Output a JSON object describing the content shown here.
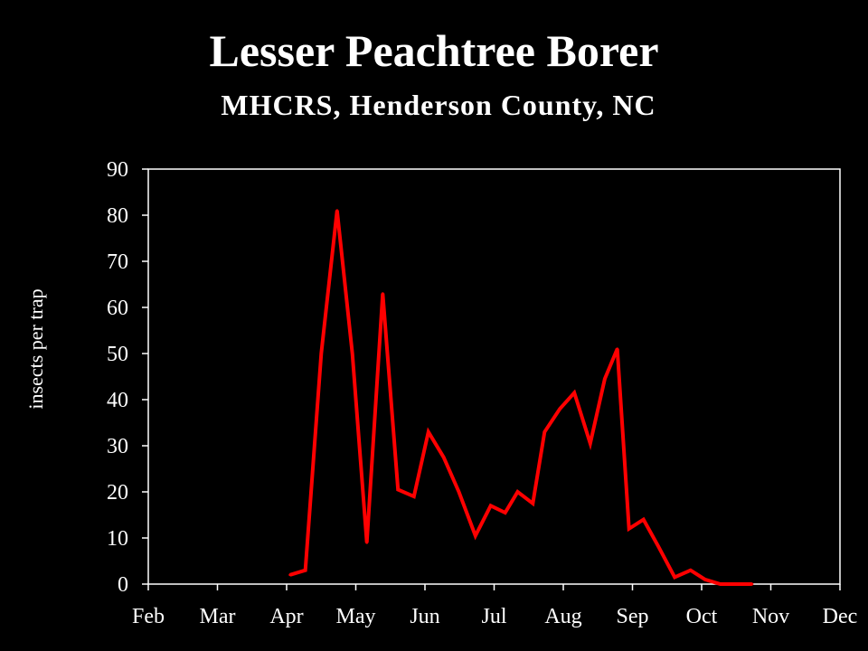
{
  "header": {
    "title": "Lesser Peachtree Borer",
    "subtitle": "MHCRS, Henderson County, NC"
  },
  "chart_data": {
    "type": "line",
    "title": "Lesser Peachtree Borer",
    "subtitle": "MHCRS, Henderson County, NC",
    "xlabel": "",
    "ylabel": "insects per trap",
    "xlim": [
      0,
      10
    ],
    "ylim": [
      0,
      90
    ],
    "yticks": [
      0,
      10,
      20,
      30,
      40,
      50,
      60,
      70,
      80,
      90
    ],
    "xtick_labels": [
      "Feb",
      "Mar",
      "Apr",
      "May",
      "Jun",
      "Jul",
      "Aug",
      "Sep",
      "Oct",
      "Nov",
      "Dec"
    ],
    "grid": false,
    "legend": "none",
    "line_color": "#ff0000",
    "series": [
      {
        "x": [
          2.05,
          2.27,
          2.5,
          2.73,
          2.95,
          3.16,
          3.39,
          3.61,
          3.84,
          4.05,
          4.27,
          4.49,
          4.73,
          4.95,
          5.16,
          5.34,
          5.56,
          5.73,
          5.95,
          6.16,
          6.39,
          6.6,
          6.78,
          6.95,
          7.16,
          7.38,
          7.61,
          7.84,
          8.05,
          8.27,
          8.5,
          8.73
        ],
        "y": [
          2,
          3,
          50,
          81,
          50,
          9,
          63,
          20.5,
          19,
          33,
          27.5,
          20,
          10.5,
          17,
          15.5,
          20,
          17.5,
          33,
          38,
          41.5,
          30.5,
          44.5,
          51,
          12,
          14,
          8,
          1.5,
          3,
          1,
          0,
          0,
          0
        ]
      }
    ]
  }
}
